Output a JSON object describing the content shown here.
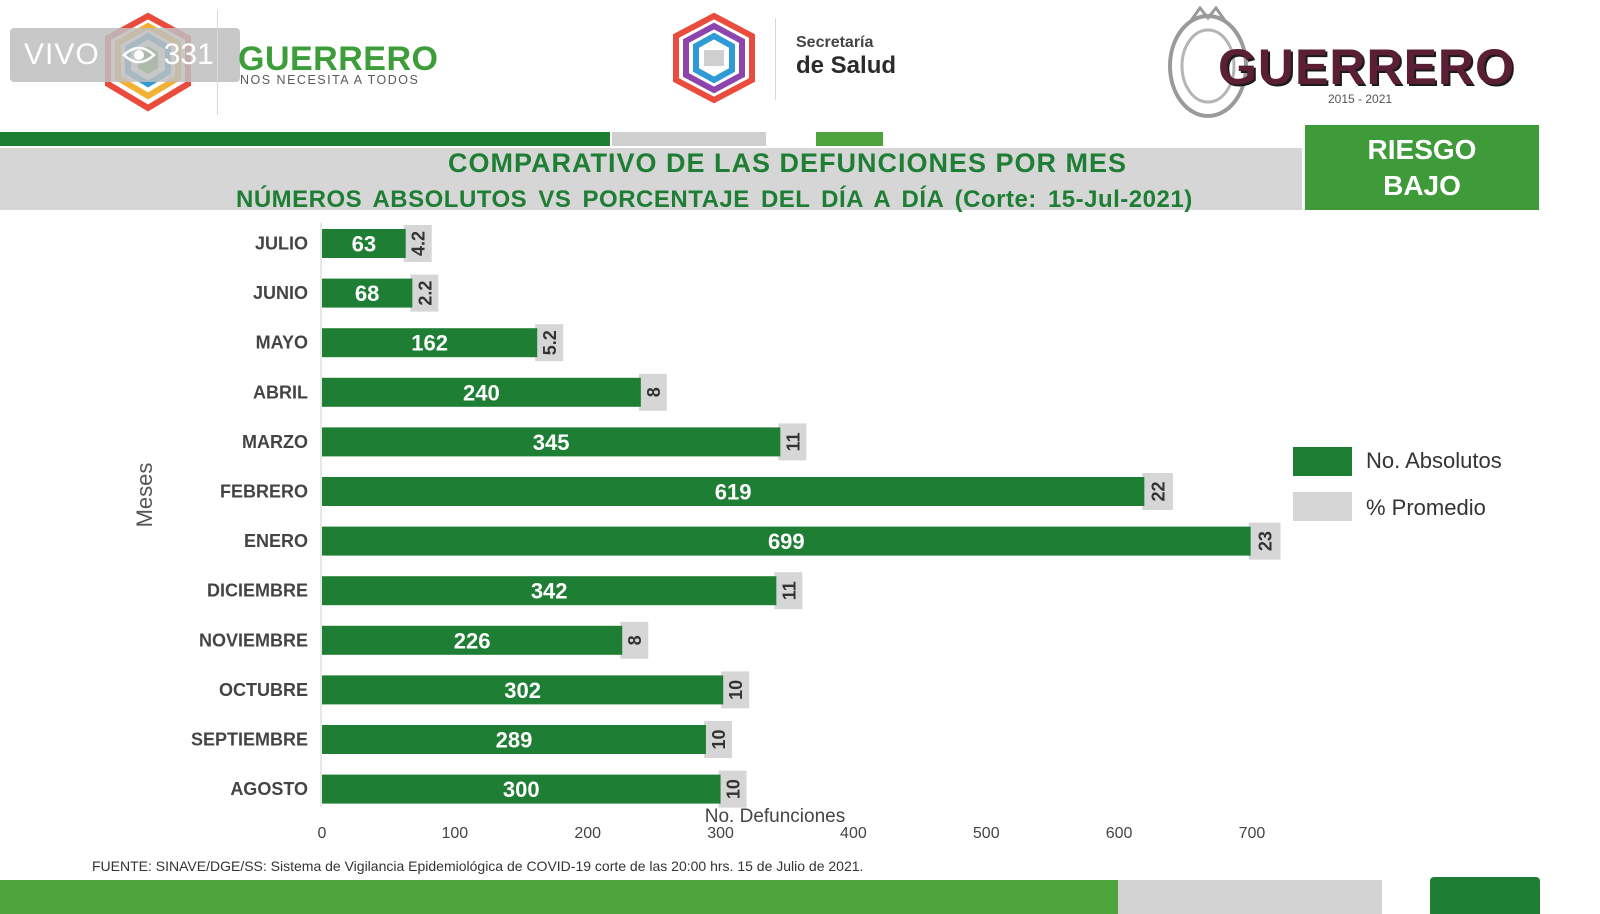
{
  "overlay": {
    "live_label": "VIVO",
    "viewers": "331",
    "icon": "eye-icon"
  },
  "header": {
    "left_brand": "GUERRERO",
    "left_tagline": "NOS NECESITA A TODOS",
    "secretaria_line1": "Secretaría",
    "secretaria_line2": "de Salud",
    "right_brand": "GUERRERO",
    "right_years": "2015 - 2021"
  },
  "title": {
    "line1": "COMPARATIVO DE LAS DEFUNCIONES POR MES",
    "line2": "NÚMEROS  ABSOLUTOS  VS PORCENTAJE  DEL DÍA A DÍA   (Corte: 15-Jul-2021)"
  },
  "badge": {
    "line1": "RIESGO",
    "line2": "BAJO"
  },
  "footer": {
    "source": "FUENTE:  SINAVE/DGE/SS:  Sistema de Vigilancia Epidemiológica de COVID-19 corte de las 20:00 hrs. 15 de Julio de 2021."
  },
  "colors": {
    "absolutos": "#1e7e34",
    "promedio": "#d6d6d6",
    "accent": "#3f9a3a"
  },
  "chart_data": {
    "type": "bar",
    "orientation": "horizontal",
    "categories": [
      "JULIO",
      "JUNIO",
      "MAYO",
      "ABRIL",
      "MARZO",
      "FEBRERO",
      "ENERO",
      "DICIEMBRE",
      "NOVIEMBRE",
      "OCTUBRE",
      "SEPTIEMBRE",
      "AGOSTO"
    ],
    "series": [
      {
        "name": "No. Absolutos",
        "values": [
          63,
          68,
          162,
          240,
          345,
          619,
          699,
          342,
          226,
          302,
          289,
          300
        ]
      },
      {
        "name": "% Promedio",
        "values": [
          4.2,
          2.2,
          5.2,
          8,
          11,
          22,
          23,
          11,
          8,
          10,
          10,
          10
        ]
      }
    ],
    "xlabel": "No. Defunciones",
    "ylabel": "Meses",
    "xlim": [
      0,
      700
    ],
    "xticks": [
      0,
      100,
      200,
      300,
      400,
      500,
      600,
      700
    ],
    "legend_position": "right",
    "grid": false,
    "stacked": true
  }
}
